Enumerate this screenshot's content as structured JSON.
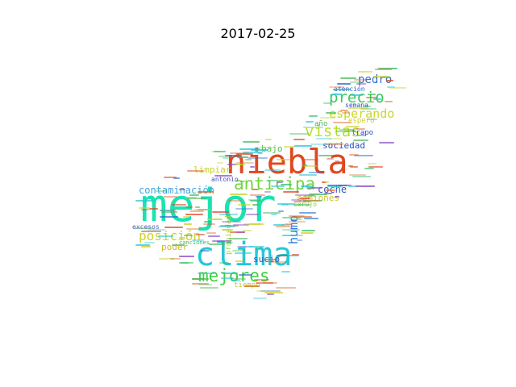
{
  "title": "2017-02-25",
  "words": [
    {
      "text": "mejor",
      "color": "#19e3b1"
    },
    {
      "text": "niebla",
      "color": "#e0481e"
    },
    {
      "text": "clima",
      "color": "#26c6d8"
    },
    {
      "text": "anticipa",
      "color": "#6fd63a"
    },
    {
      "text": "precio",
      "color": "#39c95a"
    },
    {
      "text": "vistas",
      "color": "#b7de2e"
    },
    {
      "text": "esperando",
      "color": "#c9d62a"
    },
    {
      "text": "mejores",
      "color": "#3cd13e"
    },
    {
      "text": "posición",
      "color": "#cfd22c"
    },
    {
      "text": "contaminación",
      "color": "#3da4e0"
    },
    {
      "text": "humo",
      "color": "#2f7ad6"
    },
    {
      "text": "pedro",
      "color": "#2f6fd0"
    },
    {
      "text": "coche",
      "color": "#2b55c4"
    },
    {
      "text": "camiones",
      "color": "#cfc62a"
    },
    {
      "text": "sociedad",
      "color": "#2b4fbe"
    },
    {
      "text": "limpiar",
      "color": "#c7d02a"
    },
    {
      "text": "bajo",
      "color": "#4dbd55"
    },
    {
      "text": "sucio",
      "color": "#2f5fc6"
    },
    {
      "text": "poder",
      "color": "#d0b52a"
    },
    {
      "text": "espero",
      "color": "#d6cf2a"
    },
    {
      "text": "antonio",
      "color": "#4a52b6"
    },
    {
      "text": "atención",
      "color": "#2b64c8"
    },
    {
      "text": "trapo",
      "color": "#2b4bbb"
    },
    {
      "text": "semana",
      "color": "#2a52c0"
    },
    {
      "text": "tiempo",
      "color": "#c2c92e"
    },
    {
      "text": "excesos",
      "color": "#5a58b8"
    },
    {
      "text": "canciones",
      "color": "#46b25a"
    },
    {
      "text": "propiedad",
      "color": "#9fd33a"
    },
    {
      "text": "año",
      "color": "#4fae5a"
    },
    {
      "text": "cerujo",
      "color": "#8bc93c"
    }
  ],
  "specks": [
    {
      "color": "#e04a2a"
    },
    {
      "color": "#3bbf6b"
    },
    {
      "color": "#2f6fd0"
    },
    {
      "color": "#c9d22c"
    },
    {
      "color": "#8a4fc6"
    },
    {
      "color": "#26c6d8"
    },
    {
      "color": "#d66d2a"
    },
    {
      "color": "#4ab85a"
    }
  ]
}
